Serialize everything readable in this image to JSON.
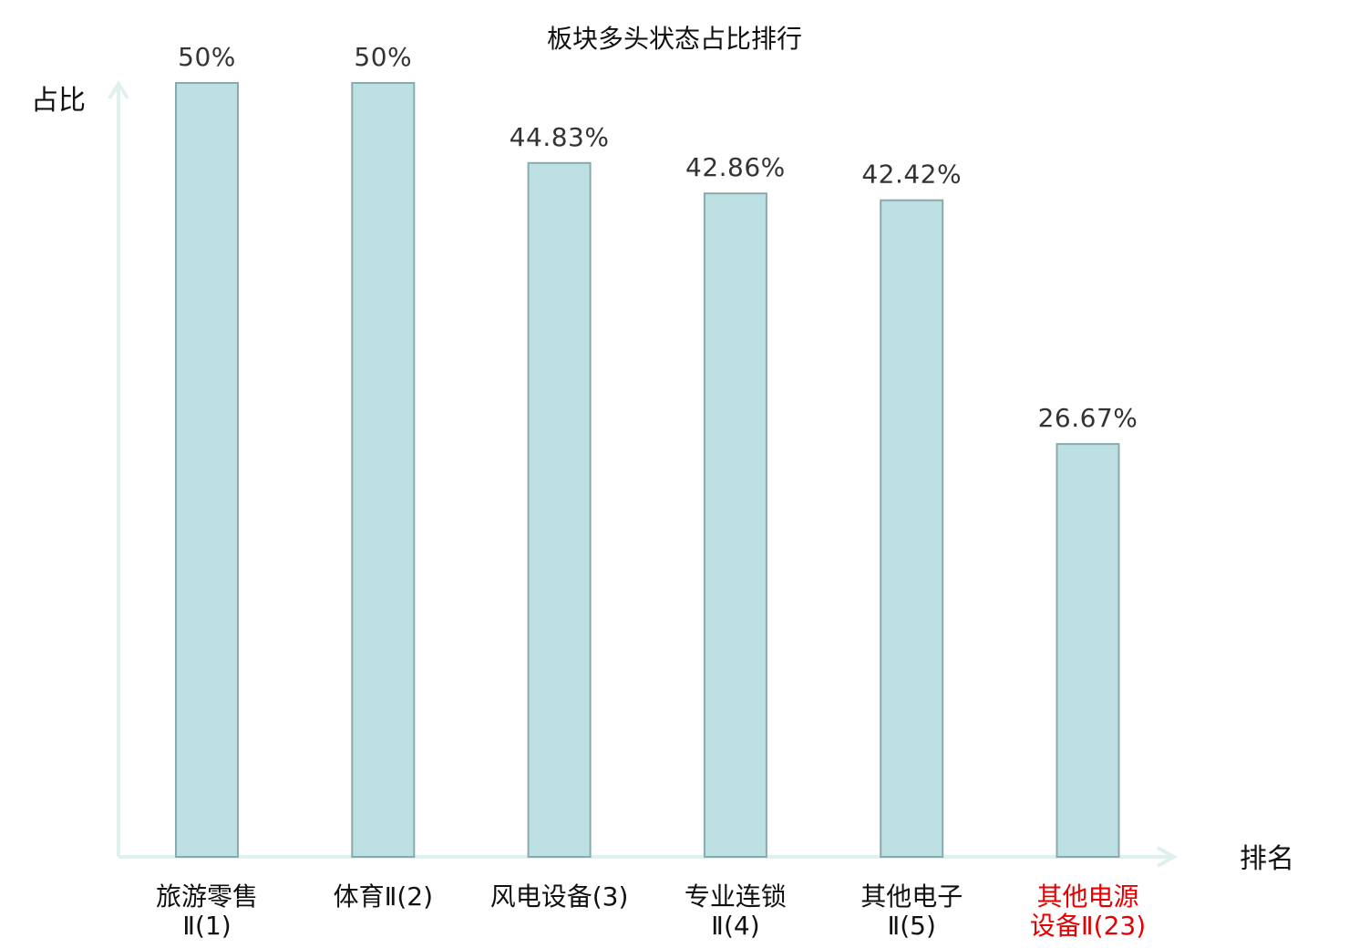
{
  "chart_data": {
    "type": "bar",
    "title": "板块多头状态占比排行",
    "ylabel": "占比",
    "xlabel": "排名",
    "ylim": [
      0,
      50
    ],
    "grid": false,
    "categories": [
      [
        "旅游零售",
        "Ⅱ(1)"
      ],
      [
        "体育Ⅱ(2)"
      ],
      [
        "风电设备(3)"
      ],
      [
        "专业连锁",
        "Ⅱ(4)"
      ],
      [
        "其他电子",
        "Ⅱ(5)"
      ],
      [
        "其他电源",
        "设备Ⅱ(23)"
      ]
    ],
    "values": [
      50,
      50,
      44.83,
      42.86,
      42.42,
      26.67
    ],
    "value_labels": [
      "50%",
      "50%",
      "44.83%",
      "42.86%",
      "42.42%",
      "26.67%"
    ],
    "highlight_index": 5,
    "colors": {
      "bar_fill": "#bde0e3",
      "bar_stroke": "#8aa9ad",
      "axis": "#dff1ef",
      "highlight_label": "#e60000"
    }
  }
}
